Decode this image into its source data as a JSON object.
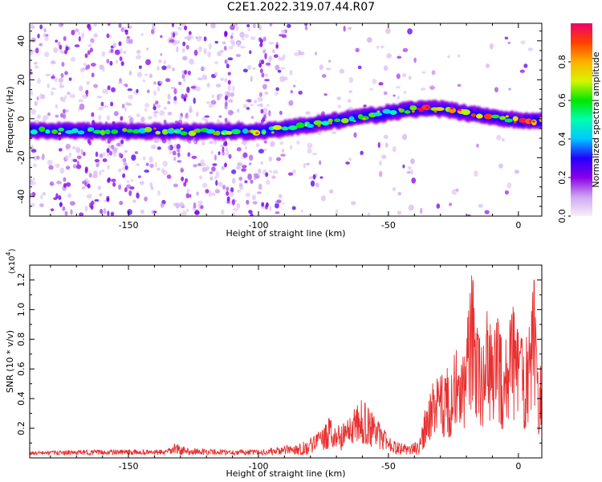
{
  "figure": {
    "title": "C2E1.2022.319.07.44.R07"
  },
  "chart_data": [
    {
      "type": "heatmap",
      "title": "C2E1.2022.319.07.44.R07",
      "xlabel": "Height of straight line (km)",
      "ylabel": "Frequency (Hz)",
      "xlim": [
        -188,
        9
      ],
      "ylim": [
        -50,
        49
      ],
      "x_ticks": [
        -150,
        -100,
        -50,
        0
      ],
      "y_ticks": [
        -40,
        -20,
        0,
        20,
        40
      ],
      "band_centerline": {
        "x": [
          -188,
          -150,
          -100,
          -90,
          -75,
          -60,
          -50,
          -40,
          -30,
          -20,
          -10,
          0,
          9
        ],
        "y": [
          -6,
          -6.5,
          -6.5,
          -5,
          -2,
          1,
          3,
          5,
          5,
          3,
          1,
          -1,
          -1
        ]
      },
      "colorbar": {
        "label": "Normalized spectral amplitude",
        "range": [
          0.0,
          1.0
        ],
        "ticks": [
          0.0,
          0.2,
          0.4,
          0.6,
          0.8
        ],
        "tick_labels": [
          "0.0",
          "0.2",
          "0.4",
          "0.6",
          "0.8"
        ],
        "colors": [
          "#f6f0fb",
          "#cfa6f0",
          "#8a00e6",
          "#2200ff",
          "#00c6ff",
          "#00ffb0",
          "#00e600",
          "#d6f500",
          "#ffb000",
          "#ff4000",
          "#f0006e"
        ]
      }
    },
    {
      "type": "line",
      "xlabel": "Height of straight line (km)",
      "ylabel": "SNR (10 * v/v)",
      "y_scale_label": "(x10",
      "y_scale_exponent": "4",
      "y_scale_suffix": ")",
      "xlim": [
        -188,
        9
      ],
      "ylim": [
        0,
        1.3
      ],
      "x_ticks": [
        -150,
        -100,
        -50,
        0
      ],
      "y_ticks": [
        0.2,
        0.4,
        0.6,
        0.8,
        1.0,
        1.2
      ],
      "y_tick_labels": [
        "0.2",
        "0.4",
        "0.6",
        "0.8",
        "1.0",
        "1.2"
      ],
      "color": "#e83030",
      "envelope": {
        "x": [
          -188,
          -160,
          -135,
          -132,
          -128,
          -110,
          -100,
          -90,
          -82,
          -75,
          -72,
          -68,
          -64,
          -60,
          -56,
          -52,
          -48,
          -42,
          -38,
          -36,
          -34,
          -32,
          -30,
          -28,
          -26,
          -24,
          -22,
          -20,
          -18,
          -16,
          -14,
          -12,
          -10,
          -8,
          -6,
          -4,
          -2,
          0,
          2,
          4,
          6,
          7,
          8,
          9
        ],
        "y": [
          0.04,
          0.05,
          0.05,
          0.09,
          0.06,
          0.05,
          0.05,
          0.07,
          0.1,
          0.18,
          0.28,
          0.2,
          0.3,
          0.36,
          0.28,
          0.18,
          0.1,
          0.08,
          0.1,
          0.3,
          0.44,
          0.48,
          0.5,
          0.58,
          0.5,
          0.7,
          0.58,
          0.78,
          1.2,
          0.9,
          0.7,
          0.95,
          0.75,
          0.9,
          0.7,
          0.85,
          0.95,
          0.8,
          0.75,
          0.8,
          1.15,
          0.7,
          0.4,
          0.75
        ]
      }
    }
  ]
}
